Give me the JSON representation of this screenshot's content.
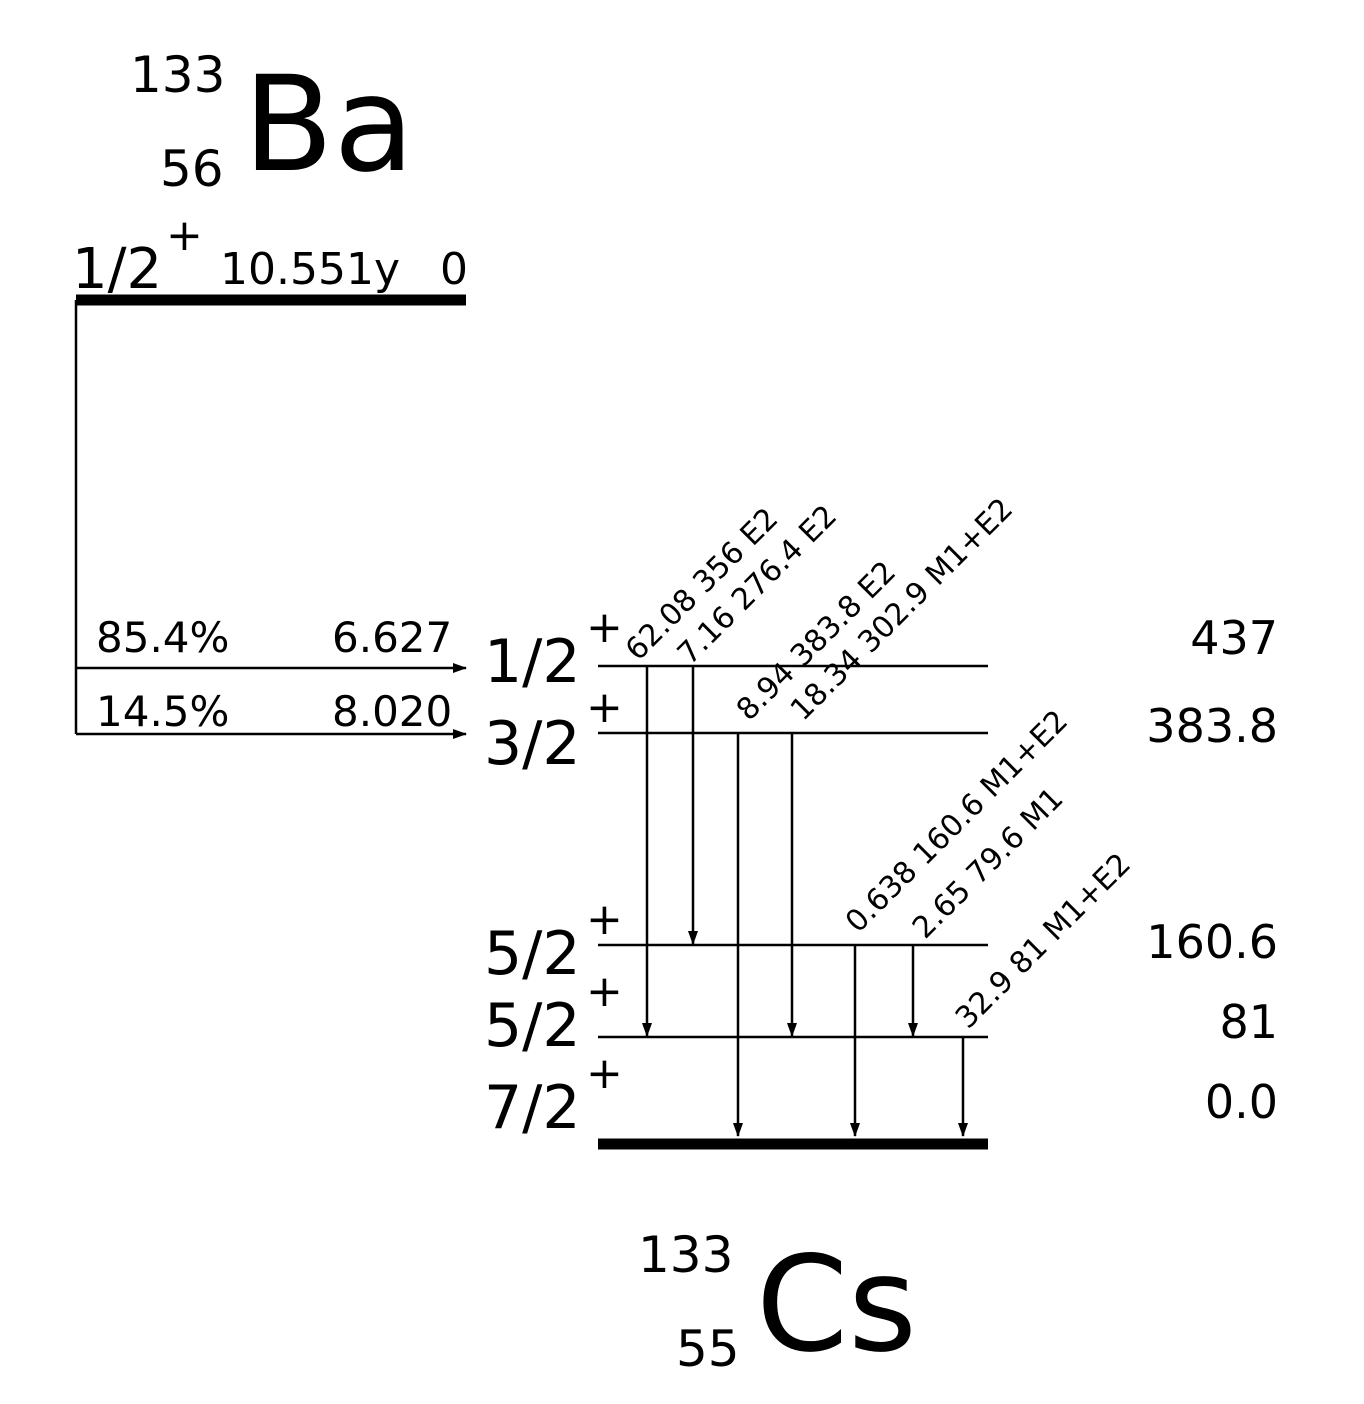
{
  "parent": {
    "mass_number": "133",
    "atomic_number": "56",
    "symbol": "Ba",
    "spin": "1/2",
    "parity": "+",
    "half_life": "10.551y",
    "energy": "0"
  },
  "daughter": {
    "mass_number": "133",
    "atomic_number": "55",
    "symbol": "Cs"
  },
  "feeds": [
    {
      "intensity": "85.4%",
      "logft": "6.627"
    },
    {
      "intensity": "14.5%",
      "logft": "8.020"
    }
  ],
  "levels": [
    {
      "spin": "1/2",
      "parity": "+",
      "energy": "437"
    },
    {
      "spin": "3/2",
      "parity": "+",
      "energy": "383.8"
    },
    {
      "spin": "5/2",
      "parity": "+",
      "energy": "160.6"
    },
    {
      "spin": "5/2",
      "parity": "+",
      "energy": "81"
    },
    {
      "spin": "7/2",
      "parity": "+",
      "energy": "0.0"
    }
  ],
  "transitions": [
    {
      "label": "62.08 356 E2"
    },
    {
      "label": "7.16 276.4 E2"
    },
    {
      "label": "8.94 383.8 E2"
    },
    {
      "label": "18.34 302.9 M1+E2"
    },
    {
      "label": "0.638 160.6 M1+E2"
    },
    {
      "label": "2.65 79.6 M1"
    },
    {
      "label": "32.9 81 M1+E2"
    }
  ]
}
